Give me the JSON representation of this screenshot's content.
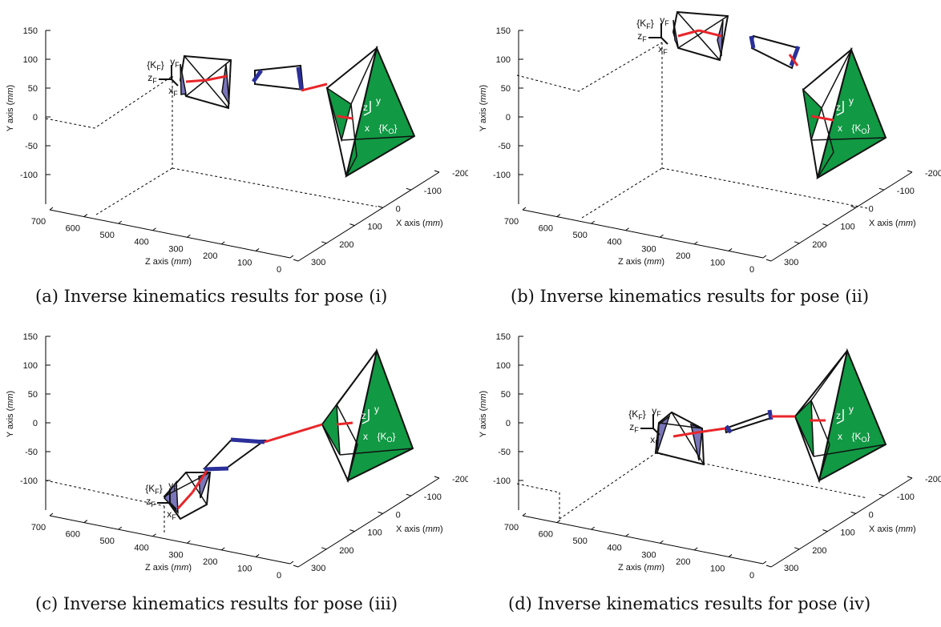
{
  "colors": {
    "cone_green": "#119944",
    "actuator_blue": "#2a2f9a",
    "hand_purple": "#7a76bb",
    "link_red": "#e8262a",
    "frame_black": "#111111"
  },
  "panels": [
    {
      "caption": "(a) Inverse kinematics results for pose (i)",
      "y_axis_label": "Y axis (mm)",
      "z_axis_label": "Z axis (mm)",
      "x_axis_label": "X axis (mm)",
      "y_ticks": [
        "150",
        "100",
        "50",
        "0",
        "-50",
        "-100"
      ],
      "z_ticks": [
        "700",
        "600",
        "500",
        "400",
        "300",
        "200",
        "100",
        "0"
      ],
      "x_ticks": [
        "-200",
        "-100",
        "0",
        "100",
        "200",
        "300"
      ],
      "finger_frame": {
        "name": "{K_F}",
        "y": "y_F",
        "z": "z_F",
        "x": "x_F"
      },
      "object_frame": {
        "name": "{K_O}",
        "z": "z",
        "y": "y",
        "x": "x"
      }
    },
    {
      "caption": "(b) Inverse kinematics results for pose (ii)",
      "y_axis_label": "Y axis (mm)",
      "z_axis_label": "Z axis (mm)",
      "x_axis_label": "X axis (mm)",
      "y_ticks": [
        "150",
        "100",
        "50",
        "0",
        "-50",
        "-100"
      ],
      "z_ticks": [
        "700",
        "600",
        "500",
        "400",
        "300",
        "200",
        "100",
        "0"
      ],
      "x_ticks": [
        "-200",
        "-100",
        "0",
        "100",
        "200",
        "300"
      ],
      "finger_frame": {
        "name": "{K_F}",
        "y": "y_F",
        "z": "z_F",
        "x": "x_F"
      },
      "object_frame": {
        "name": "{K_O}",
        "z": "z",
        "y": "y",
        "x": "x"
      }
    },
    {
      "caption": "(c) Inverse kinematics results for pose (iii)",
      "y_axis_label": "Y axis (mm)",
      "z_axis_label": "Z axis (mm)",
      "x_axis_label": "X axis (mm)",
      "y_ticks": [
        "150",
        "100",
        "50",
        "0",
        "-50",
        "-100"
      ],
      "z_ticks": [
        "700",
        "600",
        "500",
        "400",
        "300",
        "200",
        "100",
        "0"
      ],
      "x_ticks": [
        "-200",
        "-100",
        "0",
        "100",
        "200",
        "300"
      ],
      "finger_frame": {
        "name": "{K_F}",
        "y": "y_F",
        "z": "z_F",
        "x": "x_F"
      },
      "object_frame": {
        "name": "{K_O}",
        "z": "z",
        "y": "y",
        "x": "x"
      }
    },
    {
      "caption": "(d) Inverse kinematics results for pose (iv)",
      "y_axis_label": "Y axis (mm)",
      "z_axis_label": "Z axis (mm)",
      "x_axis_label": "X axis (mm)",
      "y_ticks": [
        "150",
        "100",
        "50",
        "0",
        "-50",
        "-100"
      ],
      "z_ticks": [
        "700",
        "600",
        "500",
        "400",
        "300",
        "200",
        "100",
        "0"
      ],
      "x_ticks": [
        "-200",
        "-100",
        "0",
        "100",
        "200",
        "300"
      ],
      "finger_frame": {
        "name": "{K_F}",
        "y": "y_F",
        "z": "z_F",
        "x": "x_F"
      },
      "object_frame": {
        "name": "{K_O}",
        "z": "z",
        "y": "y",
        "x": "x"
      }
    }
  ]
}
